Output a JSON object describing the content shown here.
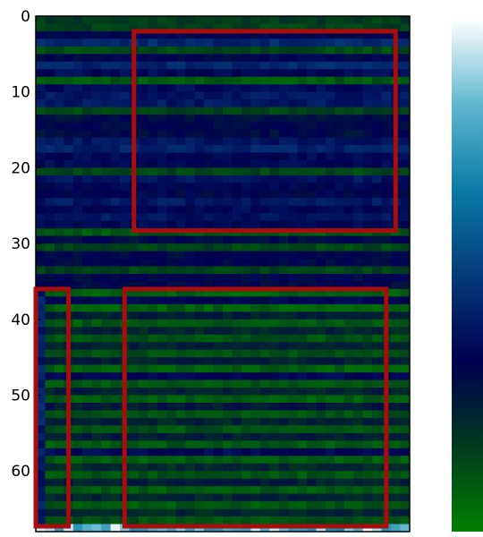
{
  "chart_data": {
    "type": "heatmap",
    "title": "",
    "xlabel": "",
    "ylabel": "",
    "y_ticks": [
      "0",
      "10",
      "20",
      "30",
      "40",
      "50",
      "60"
    ],
    "y_tick_values": [
      0,
      10,
      20,
      30,
      40,
      50,
      60
    ],
    "rows": 68,
    "columns": 40,
    "ylim": [
      68,
      0
    ],
    "colormap": "ocean",
    "colorbar_colors": [
      "#ffffff",
      "#5fb7cf",
      "#0a7aa6",
      "#053a7a",
      "#000050",
      "#003a1e",
      "#007f00"
    ],
    "highlight_boxes": [
      {
        "x_range": [
          9,
          37
        ],
        "y_range": [
          2,
          29
        ]
      },
      {
        "x_range": [
          8,
          36
        ],
        "y_range": [
          36,
          68
        ]
      },
      {
        "x_range": [
          -1.5,
          2
        ],
        "y_range": [
          36,
          68
        ]
      }
    ],
    "box_color": "#aa0d0d",
    "grid": false,
    "legend": "colorbar-right"
  }
}
